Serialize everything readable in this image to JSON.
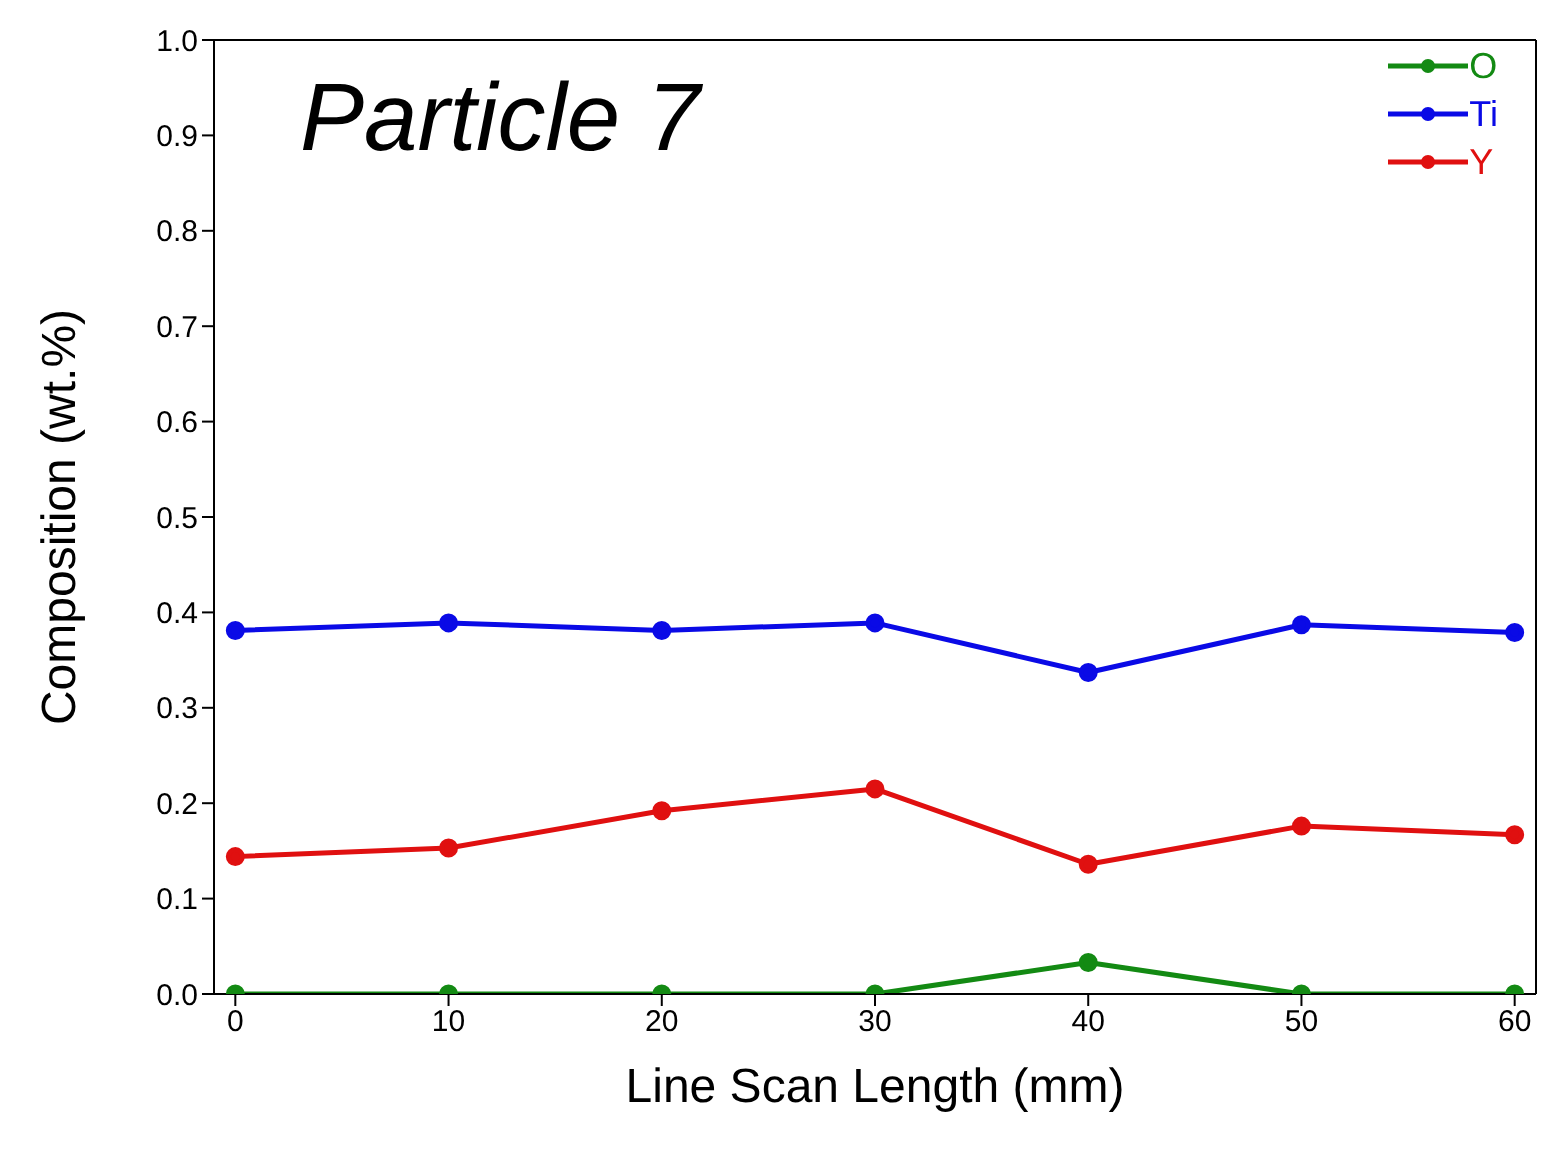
{
  "chart_data": {
    "type": "line",
    "title": "Particle 7",
    "xlabel": "Line Scan Length (mm)",
    "ylabel": "Composition (wt.%)",
    "x": [
      0,
      10,
      20,
      30,
      40,
      50,
      60
    ],
    "series": [
      {
        "name": "O",
        "color": "#138a13",
        "values": [
          0,
          0,
          0,
          0,
          0.033,
          0,
          0
        ]
      },
      {
        "name": "Ti",
        "color": "#0a0ae6",
        "values": [
          0.381,
          0.389,
          0.381,
          0.389,
          0.337,
          0.387,
          0.379
        ]
      },
      {
        "name": "Y",
        "color": "#e01010",
        "values": [
          0.144,
          0.153,
          0.192,
          0.215,
          0.136,
          0.176,
          0.167
        ]
      }
    ],
    "xlim": [
      -1,
      61
    ],
    "xticks": [
      0,
      10,
      20,
      30,
      40,
      50,
      60
    ],
    "ylim": [
      0,
      1
    ],
    "yticks": [
      {
        "value": 0,
        "label": "0.0"
      },
      0.1,
      0.2,
      0.3,
      0.4,
      0.5,
      0.6,
      0.7,
      0.8,
      0.9,
      {
        "value": 1,
        "label": "1.0"
      }
    ],
    "grid": false,
    "legend": "top right",
    "marker": "circle",
    "line_style": "solid"
  }
}
